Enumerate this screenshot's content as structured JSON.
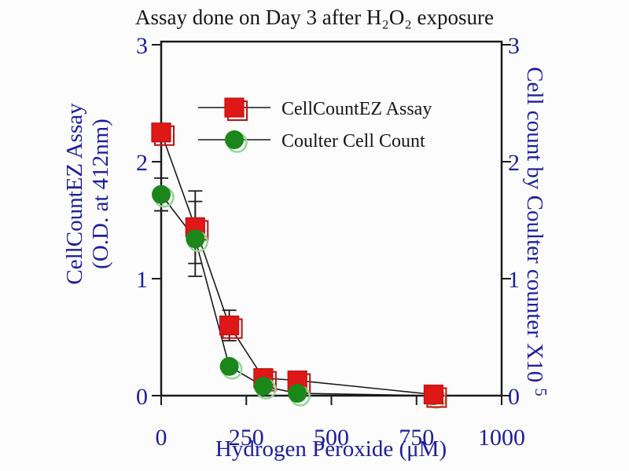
{
  "page": {
    "background": "#fcfcfc"
  },
  "colors": {
    "background": "#fcfcfc",
    "axis_text_blue": "#1e1e9b",
    "title_ink": "#161616",
    "frame": "#1a1a1a",
    "series_line": "#1a1a1a",
    "error_bar": "#1a1a1a",
    "red_fill": "#e01717",
    "red_edge": "#c01010",
    "green_fill": "#1b871b",
    "green_edge": "#93d693"
  },
  "chart_data": {
    "type": "line",
    "title": "Assay done on Day 3 after H₂O₂ exposure",
    "xlabel": "Hydrogen Peroxide (μM)",
    "ylabel_left_line1": "CellCountEZ Assay",
    "ylabel_left_line2": "(O.D. at 412nm)",
    "ylabel_right": "Cell count by Coulter counter X10",
    "ylabel_right_superscript": "5",
    "xlim": [
      0,
      1000
    ],
    "ylim_left": [
      0,
      3
    ],
    "ylim_right": [
      0,
      3
    ],
    "xticks": [
      0,
      250,
      500,
      750,
      1000
    ],
    "yticks_left": [
      0,
      1,
      2,
      3
    ],
    "yticks_right": [
      0,
      1,
      2,
      3
    ],
    "grid": false,
    "legend_position": "upper-center-inside",
    "series": [
      {
        "name": "CellCountEZ Assay",
        "marker": "square",
        "color": "#e01717",
        "x": [
          0,
          100,
          200,
          300,
          400,
          800
        ],
        "y": [
          2.25,
          1.44,
          0.6,
          0.15,
          0.13,
          0.01
        ],
        "yerr": [
          0,
          0.31,
          0.13,
          0,
          0,
          0
        ]
      },
      {
        "name": "Coulter Cell Count",
        "marker": "circle",
        "color": "#1b871b",
        "x": [
          0,
          100,
          200,
          300,
          400,
          800
        ],
        "y": [
          1.72,
          1.34,
          0.25,
          0.08,
          0.02,
          0.0
        ],
        "yerr": [
          0.14,
          0.32,
          0,
          0,
          0,
          0
        ]
      }
    ]
  }
}
